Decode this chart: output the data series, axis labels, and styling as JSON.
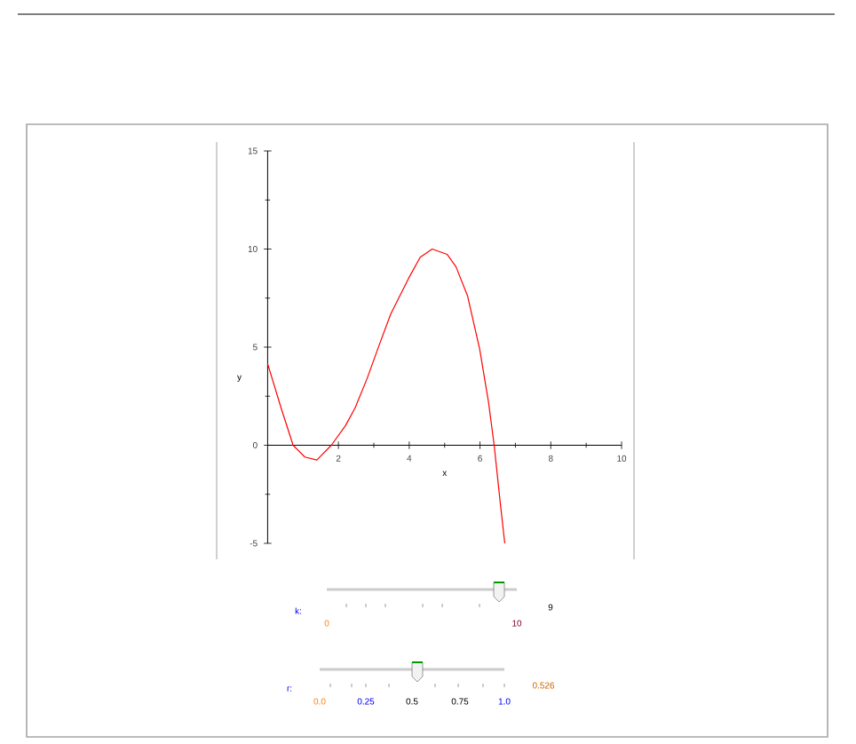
{
  "chart_data": {
    "type": "line",
    "xlabel": "x",
    "ylabel": "y",
    "xlim": [
      0,
      10
    ],
    "ylim": [
      -5,
      15
    ],
    "xticks": [
      2,
      4,
      6,
      8,
      10
    ],
    "yticks": [
      -5,
      0,
      5,
      10,
      15
    ],
    "grid": false,
    "marker": "none",
    "line_style": "solid",
    "series": [
      {
        "color": "#ff0000",
        "x": [
          0,
          0.38,
          0.72,
          1.05,
          1.39,
          1.8,
          2.2,
          2.47,
          2.81,
          3.14,
          3.48,
          3.98,
          4.31,
          4.65,
          5.07,
          5.32,
          5.65,
          5.99,
          6.24,
          6.4,
          6.57,
          6.7
        ],
        "values": [
          4.16,
          1.9,
          0,
          -0.6,
          -0.75,
          0,
          1.0,
          1.9,
          3.4,
          5.05,
          6.7,
          8.5,
          9.58,
          10,
          9.73,
          9.1,
          7.6,
          4.9,
          2.2,
          0,
          -2.9,
          -5
        ]
      }
    ],
    "annotations": [
      "k:",
      "0",
      "10",
      "9",
      "r:",
      "0.0",
      "0.25",
      "0.5",
      "0.75",
      "1.0",
      "0.526"
    ]
  }
}
